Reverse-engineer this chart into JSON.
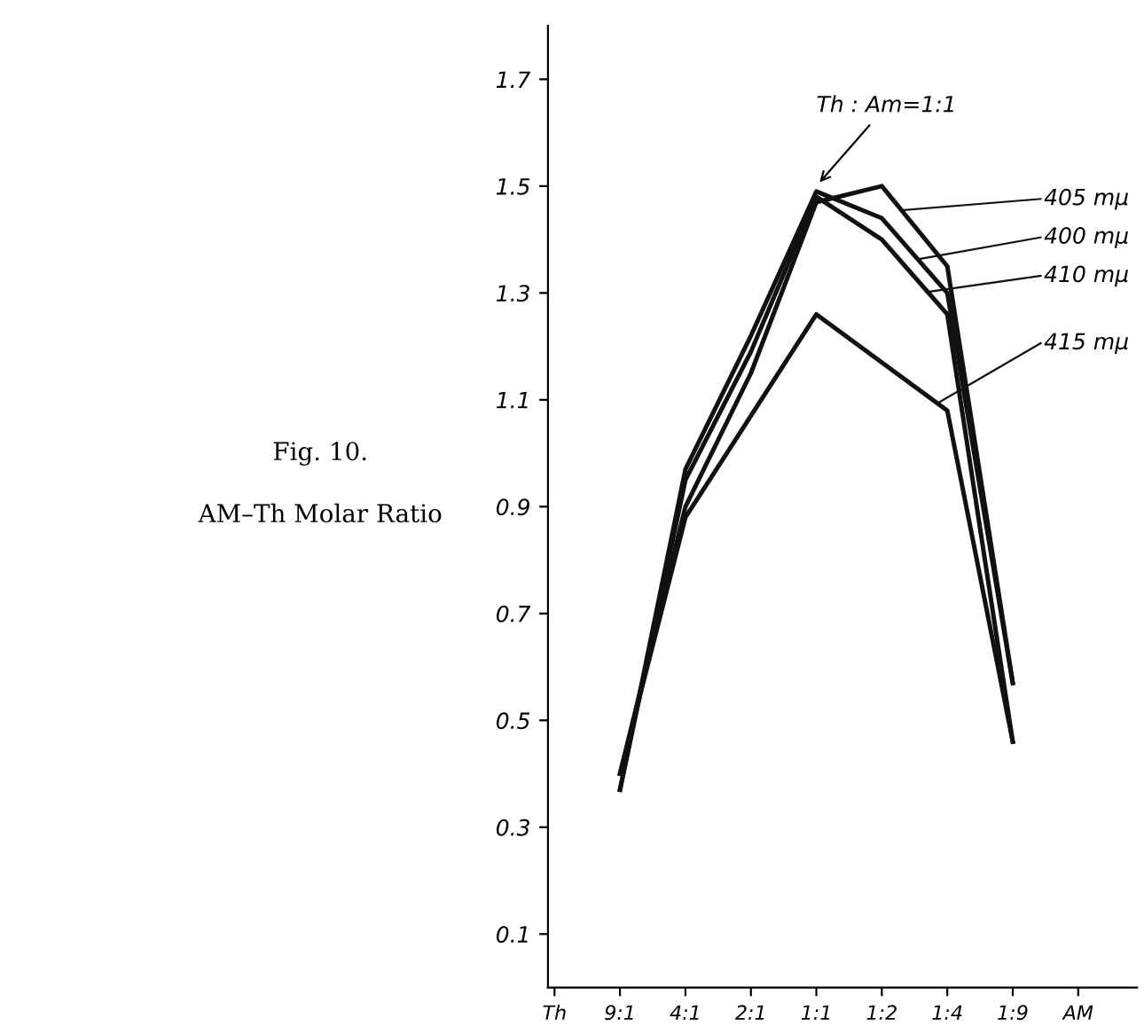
{
  "chart_data": {
    "type": "line",
    "title": "Fig. 10.",
    "subtitle": "AM–Th Molar Ratio",
    "categories": [
      "Th",
      "9:1",
      "4:1",
      "2:1",
      "1:1",
      "1:2",
      "1:4",
      "1:9",
      "AM"
    ],
    "ylim": [
      0,
      1.8
    ],
    "yticks": [
      0.1,
      0.3,
      0.5,
      0.7,
      0.9,
      1.1,
      1.3,
      1.5,
      1.7
    ],
    "grid": false,
    "legend": false,
    "marker": "none",
    "line_style": "solid",
    "annotations": [
      {
        "text": "Th : Am=1:1",
        "x": "1:1",
        "y": 1.5
      }
    ],
    "series": [
      {
        "name": "405 mμ",
        "color": "#111111",
        "values": [
          null,
          0.4,
          0.9,
          1.15,
          1.47,
          1.5,
          1.35,
          0.57,
          null
        ]
      },
      {
        "name": "400 mμ",
        "color": "#111111",
        "values": [
          null,
          0.37,
          0.97,
          1.22,
          1.49,
          1.44,
          1.3,
          0.57,
          null
        ]
      },
      {
        "name": "410 mμ",
        "color": "#111111",
        "values": [
          null,
          0.37,
          0.95,
          1.19,
          1.48,
          1.4,
          1.26,
          0.46,
          null
        ]
      },
      {
        "name": "415 mμ",
        "color": "#111111",
        "values": [
          null,
          0.4,
          0.88,
          1.07,
          1.26,
          1.17,
          1.08,
          0.46,
          null
        ]
      }
    ]
  }
}
